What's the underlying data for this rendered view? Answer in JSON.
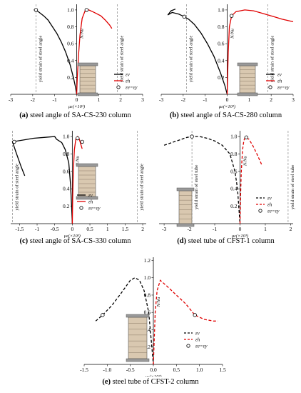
{
  "chart_data": [
    {
      "type": "line",
      "caption_letter": "(a)",
      "caption_text": "steel angle of SA-CS-230 column",
      "x_ticks": [
        "-3",
        "-2",
        "-1",
        "0",
        "1",
        "2",
        "3"
      ],
      "y_ticks": [
        "0.2",
        "0.4",
        "0.6",
        "0.8",
        "1.0"
      ],
      "xlim": [
        -3,
        3
      ],
      "ylim": [
        0,
        1.05
      ],
      "xlabel": "με(×10³)",
      "ylabel": "N/Nu",
      "annotations": [
        "yield strain of steel angle",
        "yield strain of steel angle"
      ],
      "yield_lines": [
        -1.85,
        1.85
      ],
      "legend": [
        "εv",
        "εh",
        "εe=εy"
      ],
      "series": [
        {
          "name": "εv",
          "color": "#000000",
          "dash": false,
          "x": [
            0,
            -0.05,
            -0.15,
            -0.3,
            -0.5,
            -0.7,
            -0.9,
            -1.1,
            -1.3,
            -1.5,
            -1.7,
            -1.8,
            -1.85,
            -1.95
          ],
          "y": [
            0.0,
            0.08,
            0.2,
            0.35,
            0.5,
            0.62,
            0.72,
            0.8,
            0.88,
            0.93,
            0.97,
            0.99,
            1.0,
            1.0
          ]
        },
        {
          "name": "εh",
          "color": "#e00000",
          "dash": false,
          "x": [
            0,
            0.03,
            0.08,
            0.15,
            0.25,
            0.4,
            0.55,
            0.8,
            1.1,
            1.3,
            1.5,
            1.6
          ],
          "y": [
            0.0,
            0.2,
            0.45,
            0.7,
            0.9,
            1.0,
            1.0,
            0.97,
            0.93,
            0.88,
            0.82,
            0.78
          ]
        }
      ],
      "markers": [
        {
          "x": -1.85,
          "y": 1.0
        },
        {
          "x": 0.45,
          "y": 1.0
        }
      ]
    },
    {
      "type": "line",
      "caption_letter": "(b)",
      "caption_text": "steel angle of SA-CS-280 column",
      "x_ticks": [
        "-3",
        "-2",
        "-1",
        "0",
        "1",
        "2",
        "3"
      ],
      "y_ticks": [
        "0.2",
        "0.4",
        "0.6",
        "0.8",
        "1.0"
      ],
      "xlim": [
        -3,
        3
      ],
      "ylim": [
        0,
        1.05
      ],
      "xlabel": "με(×10³)",
      "ylabel": "N/Nu",
      "annotations": [
        "yield strain of steel angle",
        "yield strain of steel angle"
      ],
      "yield_lines": [
        -1.85,
        1.85
      ],
      "legend": [
        "εv",
        "εh",
        "εe=εy"
      ],
      "series": [
        {
          "name": "εv",
          "color": "#000000",
          "dash": false,
          "x": [
            0,
            -0.1,
            -0.3,
            -0.6,
            -0.9,
            -1.2,
            -1.5,
            -1.75,
            -1.95,
            -2.2,
            -2.5,
            -2.7,
            -2.55,
            -2.35
          ],
          "y": [
            0.0,
            0.1,
            0.25,
            0.45,
            0.6,
            0.73,
            0.83,
            0.89,
            0.92,
            0.95,
            0.97,
            0.94,
            0.99,
            1.01
          ]
        },
        {
          "name": "εh",
          "color": "#e00000",
          "dash": false,
          "x": [
            0,
            0.02,
            0.05,
            0.1,
            0.2,
            0.4,
            0.8,
            1.2,
            1.6,
            2.0,
            2.5,
            3.0
          ],
          "y": [
            0.0,
            0.2,
            0.5,
            0.8,
            0.93,
            0.98,
            1.0,
            0.99,
            0.96,
            0.93,
            0.89,
            0.86
          ]
        }
      ],
      "markers": [
        {
          "x": -1.95,
          "y": 0.92
        },
        {
          "x": 0.2,
          "y": 0.93
        }
      ]
    },
    {
      "type": "line",
      "caption_letter": "(c)",
      "caption_text": "steel angle of SA-CS-330 column",
      "x_ticks": [
        "-1.5",
        "-1",
        "-0.5",
        "0",
        "0.5",
        "1",
        "1.5",
        "2"
      ],
      "y_ticks": [
        "0.2",
        "0.4",
        "0.6",
        "0.8",
        "1.0"
      ],
      "xlim": [
        -1.75,
        2.1
      ],
      "ylim": [
        0,
        1.05
      ],
      "xlabel": "με(×10³)",
      "ylabel": "N/Nu",
      "annotations": [
        "yield strain of steel angle",
        "yield strain of steel angle"
      ],
      "yield_lines": [
        -1.7,
        1.85
      ],
      "legend": [
        "εv",
        "εh",
        "εe=εy"
      ],
      "series": [
        {
          "name": "εv",
          "color": "#000000",
          "dash": false,
          "x": [
            0,
            -0.02,
            -0.05,
            -0.1,
            -0.2,
            -0.3,
            -0.45,
            -0.5,
            -0.8,
            -1.1,
            -1.4,
            -1.7,
            -1.6,
            -1.45,
            -1.35
          ],
          "y": [
            0.0,
            0.2,
            0.45,
            0.7,
            0.85,
            0.93,
            0.97,
            1.0,
            0.99,
            0.98,
            0.96,
            0.94,
            0.82,
            0.65,
            0.55
          ]
        },
        {
          "name": "εh",
          "color": "#e00000",
          "dash": false,
          "x": [
            0,
            0.01,
            0.03,
            0.06,
            0.1,
            0.15,
            0.2,
            0.25,
            0.28
          ],
          "y": [
            0.0,
            0.3,
            0.6,
            0.85,
            0.97,
            1.0,
            0.97,
            0.9,
            0.86
          ]
        }
      ],
      "markers": [
        {
          "x": -1.65,
          "y": 0.94
        },
        {
          "x": 0.15,
          "y": 0.98
        },
        {
          "x": 0.28,
          "y": 0.94
        }
      ]
    },
    {
      "type": "line",
      "caption_letter": "(d)",
      "caption_text": "steel tube of CFST-1 column",
      "x_ticks": [
        "-3",
        "-2",
        "-1",
        "0",
        "1",
        "2"
      ],
      "y_ticks": [
        "0.2",
        "0.4",
        "0.6",
        "0.8",
        "1.0"
      ],
      "xlim": [
        -3.2,
        2.1
      ],
      "ylim": [
        0,
        1.05
      ],
      "xlabel": "με(×10³)",
      "ylabel": "N/Nu",
      "annotations": [
        "yield strain of steel tube",
        "yield strain of steel tube"
      ],
      "yield_lines": [
        -1.9,
        1.9
      ],
      "legend": [
        "εv",
        "εh",
        "εe=εy"
      ],
      "series": [
        {
          "name": "εv",
          "color": "#000000",
          "dash": true,
          "x": [
            -3.0,
            -2.7,
            -2.4,
            -2.1,
            -1.9,
            -1.6,
            -1.3,
            -1.0,
            -0.7,
            -0.4,
            -0.2,
            -0.1,
            -0.05,
            0
          ],
          "y": [
            0.9,
            0.93,
            0.96,
            0.99,
            1.0,
            1.0,
            0.98,
            0.95,
            0.9,
            0.8,
            0.6,
            0.4,
            0.2,
            0.0
          ]
        },
        {
          "name": "εh",
          "color": "#e00000",
          "dash": true,
          "x": [
            0,
            0.02,
            0.05,
            0.1,
            0.15,
            0.2,
            0.35,
            0.5,
            0.7,
            0.85
          ],
          "y": [
            0.0,
            0.3,
            0.6,
            0.85,
            0.95,
            0.99,
            0.97,
            0.9,
            0.78,
            0.68
          ]
        }
      ],
      "markers": [
        {
          "x": -1.9,
          "y": 1.0
        },
        {
          "x": 0.25,
          "y": 0.99
        }
      ]
    },
    {
      "type": "line",
      "caption_letter": "(e)",
      "caption_text": "steel tube of CFST-2 column",
      "x_ticks": [
        "-1.5",
        "-1.0",
        "-0.5",
        "0.0",
        "0.5",
        "1.0",
        "1.5"
      ],
      "y_ticks": [
        "0.2",
        "0.4",
        "0.6",
        "0.8",
        "1.0",
        "1.2"
      ],
      "xlim": [
        -1.5,
        1.5
      ],
      "ylim": [
        0,
        1.22
      ],
      "xlabel": "με(×10³)",
      "ylabel": "N/Nu",
      "annotations": [],
      "yield_lines": [],
      "legend": [
        "εv",
        "εh",
        "εe=εy"
      ],
      "series": [
        {
          "name": "εv",
          "color": "#000000",
          "dash": true,
          "x": [
            -1.25,
            -1.1,
            -0.9,
            -0.7,
            -0.5,
            -0.4,
            -0.3,
            -0.2,
            -0.1,
            -0.05,
            0
          ],
          "y": [
            0.5,
            0.57,
            0.68,
            0.82,
            0.97,
            1.0,
            0.97,
            0.85,
            0.6,
            0.3,
            0.0
          ]
        },
        {
          "name": "εh",
          "color": "#e00000",
          "dash": true,
          "x": [
            0,
            0.02,
            0.04,
            0.08,
            0.15,
            0.3,
            0.5,
            0.7,
            0.9,
            1.1,
            1.3,
            1.4
          ],
          "y": [
            0.0,
            0.3,
            0.6,
            0.85,
            0.97,
            0.9,
            0.8,
            0.7,
            0.57,
            0.52,
            0.5,
            0.5
          ]
        }
      ],
      "markers": [
        {
          "x": -1.1,
          "y": 0.57
        },
        {
          "x": 0.9,
          "y": 0.57
        }
      ]
    }
  ]
}
